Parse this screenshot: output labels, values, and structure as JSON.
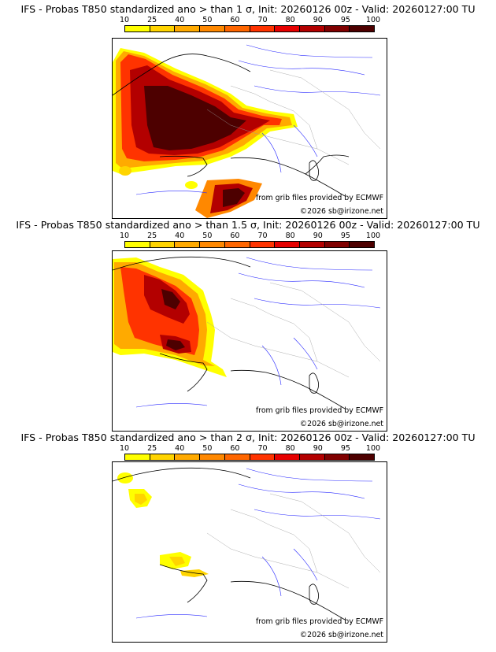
{
  "colorbar": {
    "labels": [
      "10",
      "25",
      "40",
      "50",
      "60",
      "70",
      "80",
      "90",
      "95",
      "100"
    ],
    "colors": [
      "#ffff00",
      "#ffd400",
      "#ffaa00",
      "#ff8800",
      "#ff6600",
      "#ff3300",
      "#e60000",
      "#b30000",
      "#800000",
      "#4d0000"
    ]
  },
  "credits": {
    "source": "from grib files provided by ECMWF",
    "copyright": "©2026 sb@irizone.net"
  },
  "panels": [
    {
      "title": "IFS - Probas T850  standardized ano > than 1 σ, Init: 20260126 00z - Valid: 20260127:00 TU"
    },
    {
      "title": "IFS - Probas T850  standardized ano > than 1.5 σ, Init: 20260126 00z - Valid: 20260127:00 TU"
    },
    {
      "title": "IFS - Probas T850  standardized ano > than 2 σ, Init: 20260126 00z - Valid: 20260127:00 TU"
    }
  ]
}
